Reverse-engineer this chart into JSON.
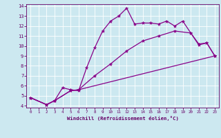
{
  "xlabel": "Windchill (Refroidissement éolien,°C)",
  "bg_color": "#cce8f0",
  "line_color": "#880088",
  "xlim": [
    -0.5,
    23.5
  ],
  "ylim": [
    3.8,
    14.2
  ],
  "xticks": [
    0,
    1,
    2,
    3,
    4,
    5,
    6,
    7,
    8,
    9,
    10,
    11,
    12,
    13,
    14,
    15,
    16,
    17,
    18,
    19,
    20,
    21,
    22,
    23
  ],
  "yticks": [
    4,
    5,
    6,
    7,
    8,
    9,
    10,
    11,
    12,
    13,
    14
  ],
  "line1_x": [
    0,
    2,
    3,
    4,
    5,
    6,
    7,
    8,
    9,
    10,
    11,
    12,
    13,
    14,
    15,
    16,
    17,
    18,
    19,
    20,
    21,
    22,
    23
  ],
  "line1_y": [
    4.8,
    4.1,
    4.5,
    5.8,
    5.6,
    5.5,
    7.8,
    9.8,
    11.5,
    12.5,
    13.0,
    13.8,
    12.2,
    12.3,
    12.3,
    12.2,
    12.5,
    12.0,
    12.5,
    11.3,
    10.1,
    10.3,
    9.0
  ],
  "line2_x": [
    0,
    2,
    3,
    5,
    6,
    8,
    10,
    12,
    14,
    16,
    18,
    20,
    21,
    22,
    23
  ],
  "line2_y": [
    4.8,
    4.1,
    4.5,
    5.5,
    5.6,
    7.0,
    8.2,
    9.5,
    10.5,
    11.0,
    11.5,
    11.3,
    10.2,
    10.3,
    9.0
  ],
  "line3_x": [
    0,
    2,
    3,
    5,
    6,
    23
  ],
  "line3_y": [
    4.8,
    4.1,
    4.5,
    5.5,
    5.6,
    9.0
  ]
}
